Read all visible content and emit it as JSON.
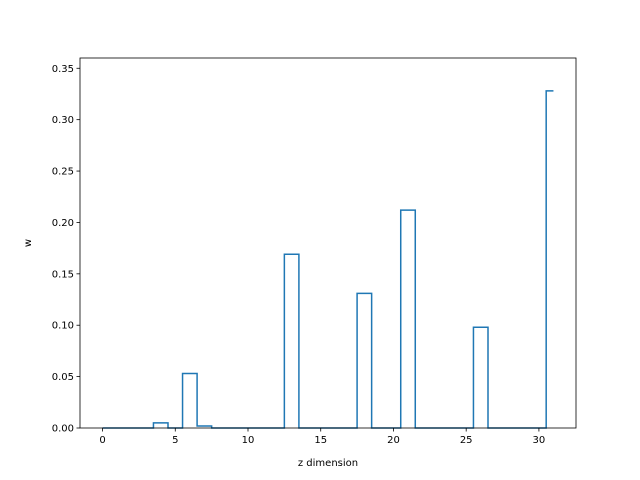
{
  "chart_data": {
    "type": "line",
    "drawstyle": "steps-mid",
    "title": "",
    "xlabel": "z dimension",
    "ylabel": "w",
    "xlim": [
      -1.55,
      32.55
    ],
    "ylim": [
      0.0,
      0.36
    ],
    "xticks": [
      0,
      5,
      10,
      15,
      20,
      25,
      30
    ],
    "yticks": [
      0.0,
      0.05,
      0.1,
      0.15,
      0.2,
      0.25,
      0.3,
      0.35
    ],
    "ytick_labels": [
      "0.00",
      "0.05",
      "0.10",
      "0.15",
      "0.20",
      "0.25",
      "0.30",
      "0.35"
    ],
    "grid": false,
    "legend": "none",
    "line_color": "#1f77b4",
    "series": [
      {
        "x": [
          0,
          1,
          2,
          3,
          4,
          5,
          6,
          7,
          8,
          9,
          10,
          11,
          12,
          13,
          14,
          15,
          16,
          17,
          18,
          19,
          20,
          21,
          22,
          23,
          24,
          25,
          26,
          27,
          28,
          29,
          30,
          31
        ],
        "values": [
          0,
          0,
          0,
          0,
          0.005,
          0,
          0.053,
          0.002,
          0,
          0,
          0,
          0,
          0,
          0.169,
          0,
          0,
          0,
          0,
          0.131,
          0,
          0,
          0.212,
          0,
          0,
          0,
          0,
          0.098,
          0,
          0,
          0,
          0,
          0.328
        ]
      }
    ]
  }
}
